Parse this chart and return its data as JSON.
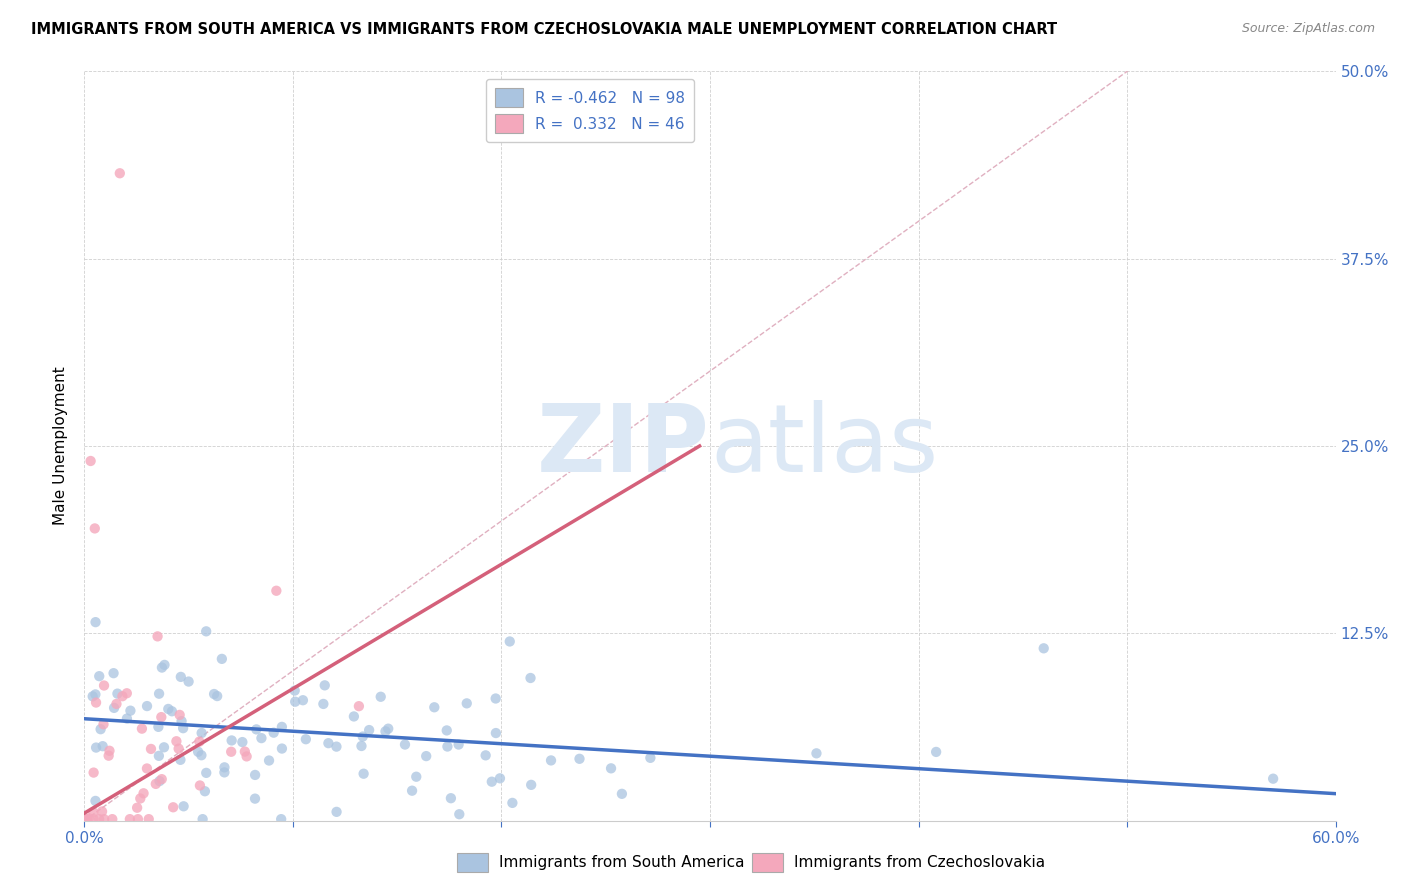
{
  "title": "IMMIGRANTS FROM SOUTH AMERICA VS IMMIGRANTS FROM CZECHOSLOVAKIA MALE UNEMPLOYMENT CORRELATION CHART",
  "source": "Source: ZipAtlas.com",
  "ylabel": "Male Unemployment",
  "xlim": [
    0.0,
    0.6
  ],
  "ylim": [
    0.0,
    0.5
  ],
  "xtick_vals": [
    0.0,
    0.1,
    0.2,
    0.3,
    0.4,
    0.5,
    0.6
  ],
  "xtick_labels": [
    "0.0%",
    "",
    "",
    "",
    "",
    "",
    "60.0%"
  ],
  "ytick_vals": [
    0.0,
    0.125,
    0.25,
    0.375,
    0.5
  ],
  "ytick_labels_right": [
    "",
    "12.5%",
    "25.0%",
    "37.5%",
    "50.0%"
  ],
  "blue_R": -0.462,
  "blue_N": 98,
  "pink_R": 0.332,
  "pink_N": 46,
  "blue_color": "#aac4e0",
  "pink_color": "#f4a8bc",
  "blue_line_color": "#4472c4",
  "pink_line_color": "#d4607a",
  "diagonal_color": "#e0b0c0",
  "diagonal_linestyle": "--",
  "legend_label_blue": "Immigrants from South America",
  "legend_label_pink": "Immigrants from Czechoslovakia",
  "watermark_zip": "ZIP",
  "watermark_atlas": "atlas",
  "watermark_color": "#dce8f5",
  "blue_line_x": [
    0.0,
    0.6
  ],
  "blue_line_y": [
    0.068,
    0.018
  ],
  "pink_line_x": [
    0.0,
    0.295
  ],
  "pink_line_y": [
    0.005,
    0.25
  ],
  "title_fontsize": 10.5,
  "source_fontsize": 9,
  "tick_label_fontsize": 11,
  "legend_fontsize": 11
}
